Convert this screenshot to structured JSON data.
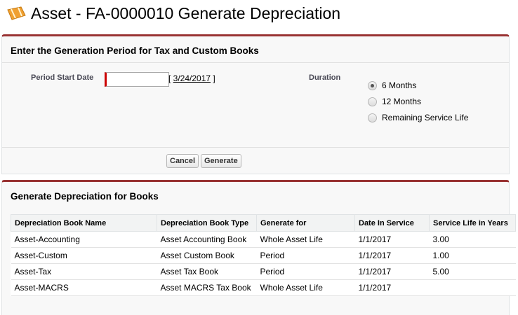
{
  "header": {
    "title": "Asset - FA-0000010 Generate Depreciation",
    "icon": "asset-icon"
  },
  "period": {
    "section_title": "Enter the Generation Period for Tax and Custom Books",
    "start_date_label": "Period Start Date",
    "start_date_value": "",
    "default_date": "3/24/2017",
    "duration_label": "Duration",
    "duration_options": [
      {
        "label": "6 Months",
        "selected": true
      },
      {
        "label": "12 Months",
        "selected": false
      },
      {
        "label": "Remaining Service Life",
        "selected": false
      }
    ],
    "cancel_label": "Cancel",
    "generate_label": "Generate"
  },
  "books": {
    "section_title": "Generate Depreciation for Books",
    "columns": [
      "Depreciation Book Name",
      "Depreciation Book Type",
      "Generate for",
      "Date In Service",
      "Service Life in Years"
    ],
    "rows": [
      [
        "Asset-Accounting",
        "Asset Accounting Book",
        "Whole Asset Life",
        "1/1/2017",
        "3.00"
      ],
      [
        "Asset-Custom",
        "Asset Custom Book",
        "Period",
        "1/1/2017",
        "1.00"
      ],
      [
        "Asset-Tax",
        "Asset Tax Book",
        "Period",
        "1/1/2017",
        "5.00"
      ],
      [
        "Asset-MACRS",
        "Asset MACRS Tax Book",
        "Whole Asset Life",
        "1/1/2017",
        ""
      ]
    ]
  },
  "colors": {
    "accent": "#993333",
    "required": "#cc0000"
  }
}
